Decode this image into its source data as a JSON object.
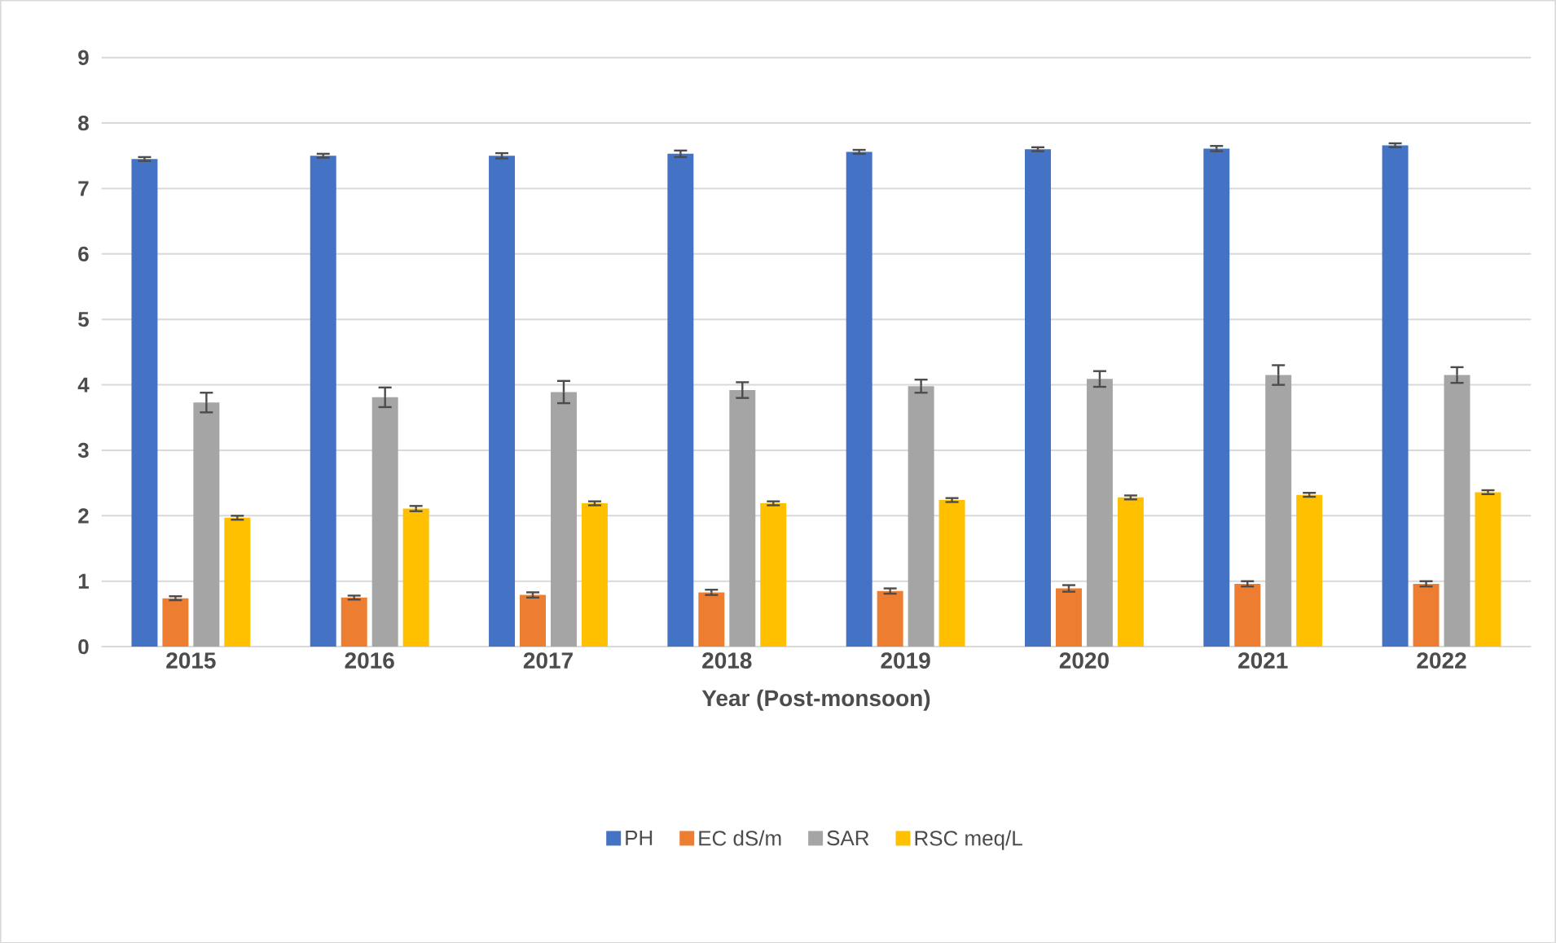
{
  "chart_data": {
    "type": "bar",
    "xlabel": "Year (Post-monsoon)",
    "categories": [
      "2015",
      "2016",
      "2017",
      "2018",
      "2019",
      "2020",
      "2021",
      "2022"
    ],
    "series": [
      {
        "name": "PH",
        "color": "#4472c4",
        "values": [
          7.45,
          7.5,
          7.5,
          7.53,
          7.56,
          7.6,
          7.61,
          7.66
        ],
        "errors": [
          0.03,
          0.03,
          0.04,
          0.05,
          0.03,
          0.03,
          0.04,
          0.03
        ]
      },
      {
        "name": "EC dS/m",
        "color": "#ed7d31",
        "values": [
          0.74,
          0.75,
          0.79,
          0.83,
          0.85,
          0.89,
          0.96,
          0.96
        ],
        "errors": [
          0.03,
          0.03,
          0.04,
          0.04,
          0.04,
          0.05,
          0.04,
          0.04
        ]
      },
      {
        "name": "SAR",
        "color": "#a5a5a5",
        "values": [
          3.73,
          3.81,
          3.89,
          3.92,
          3.98,
          4.09,
          4.15,
          4.15
        ],
        "errors": [
          0.15,
          0.15,
          0.17,
          0.12,
          0.1,
          0.12,
          0.15,
          0.12
        ]
      },
      {
        "name": "RSC meq/L",
        "color": "#ffc000",
        "values": [
          1.97,
          2.11,
          2.19,
          2.19,
          2.24,
          2.28,
          2.32,
          2.36
        ],
        "errors": [
          0.03,
          0.04,
          0.03,
          0.03,
          0.03,
          0.03,
          0.03,
          0.03
        ]
      }
    ],
    "ylim": [
      0,
      9
    ],
    "yticks": [
      0,
      1,
      2,
      3,
      4,
      5,
      6,
      7,
      8,
      9
    ],
    "grid": "y",
    "legend": "bottom"
  }
}
